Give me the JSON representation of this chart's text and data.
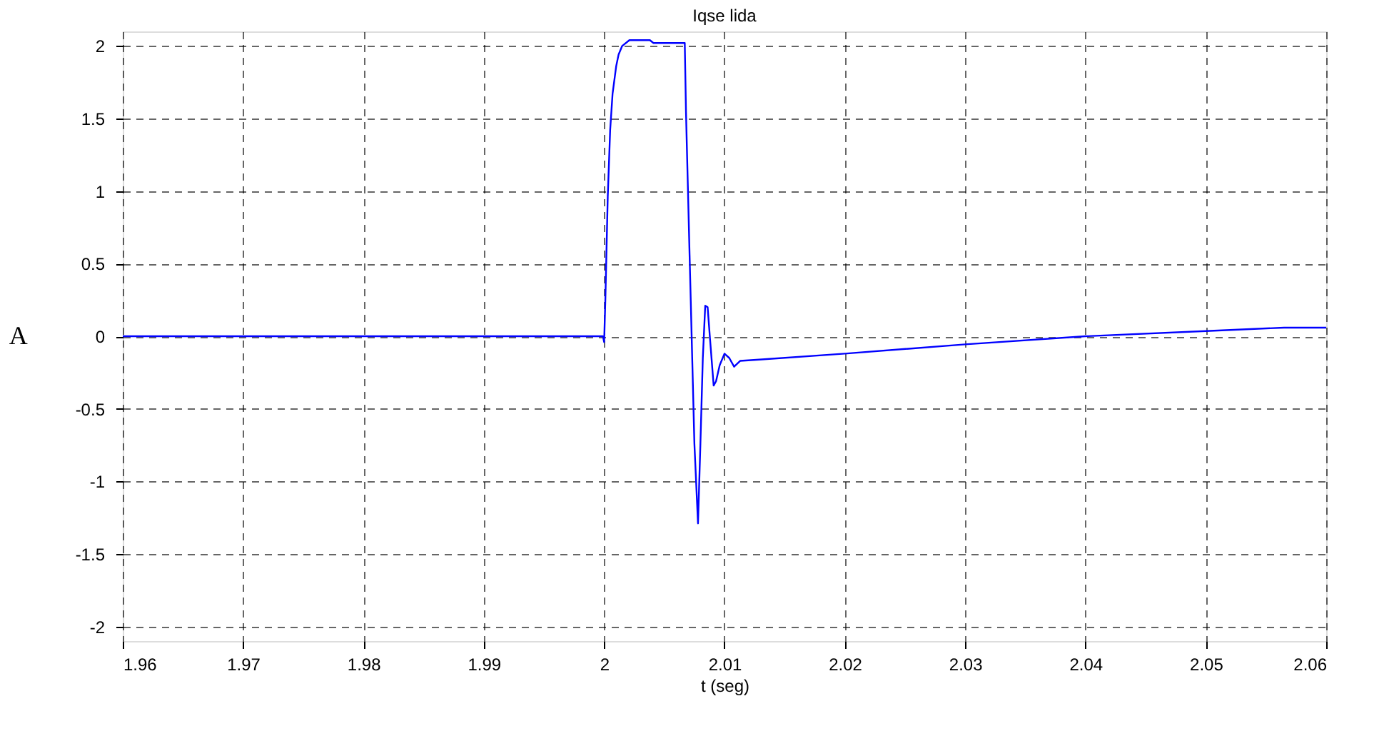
{
  "chart_data": {
    "type": "line",
    "title": "Iqse lida",
    "xlabel": "t (seg)",
    "ylabel": "A",
    "series": [
      {
        "color": "#0000ff",
        "x": [
          1.96,
          1.97,
          1.98,
          1.99,
          1.9999,
          2.0,
          2.0001,
          2.0003,
          2.0005,
          2.0007,
          2.001,
          2.0012,
          2.0015,
          2.0021,
          2.0038,
          2.0041,
          2.0067,
          2.0068,
          2.0071,
          2.0075,
          2.0078,
          2.008,
          2.0082,
          2.0084,
          2.0086,
          2.0088,
          2.0091,
          2.0093,
          2.0096,
          2.01,
          2.0104,
          2.0108,
          2.0113,
          2.0131,
          2.02,
          2.03,
          2.04,
          2.05,
          2.0565,
          2.06
        ],
        "values": [
          0,
          0,
          0,
          0,
          0,
          -0.04,
          0.25,
          0.96,
          1.42,
          1.67,
          1.86,
          1.94,
          2.0,
          2.04,
          2.04,
          2.02,
          2.02,
          1.55,
          0.56,
          -0.74,
          -1.29,
          -0.74,
          -0.15,
          0.21,
          0.2,
          -0.02,
          -0.34,
          -0.31,
          -0.2,
          -0.12,
          -0.15,
          -0.21,
          -0.17,
          -0.16,
          -0.12,
          -0.056,
          0,
          0.036,
          0.059,
          0.059
        ]
      }
    ],
    "xlim": [
      1.96,
      2.06
    ],
    "xticks": [
      1.96,
      1.97,
      1.98,
      1.99,
      2,
      2.01,
      2.02,
      2.03,
      2.04,
      2.05,
      2.06
    ],
    "ylim": [
      -2.1,
      2.1
    ],
    "yticks": [
      -2,
      -1.5,
      -1,
      -0.5,
      0,
      0.5,
      1,
      1.5,
      2
    ],
    "grid": true,
    "line_style": "solid",
    "legend": false
  }
}
